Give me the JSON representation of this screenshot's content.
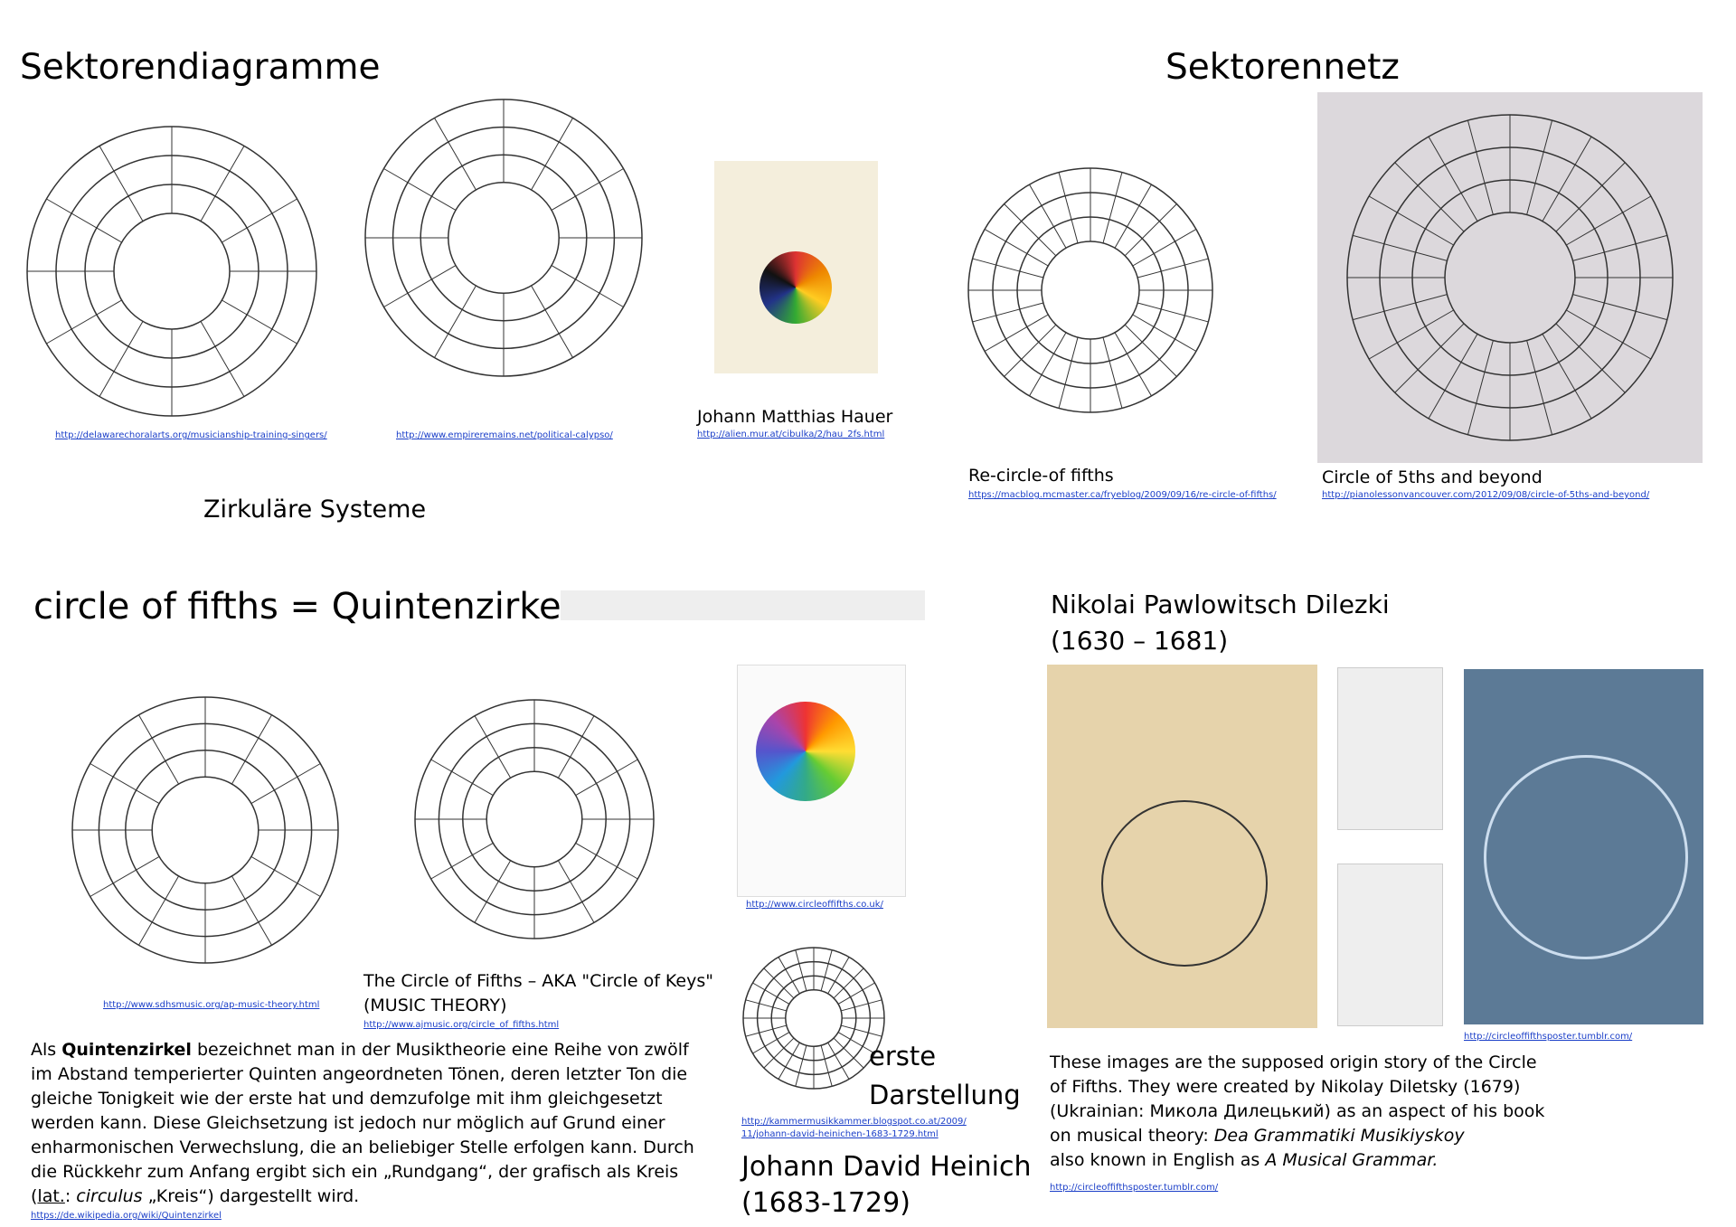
{
  "sections": {
    "sector_diagrams": {
      "title": "Sektorendiagramme",
      "subtitle": "Zirkuläre Systeme",
      "items": [
        {
          "url": "http://delawarechoralarts.org/musicianship-training-singers/"
        },
        {
          "url": "http://www.empireremains.net/political-calypso/"
        },
        {
          "caption": "Johann Matthias Hauer",
          "url": "http://alien.mur.at/cibulka/2/hau_2fs.html"
        }
      ]
    },
    "sector_net": {
      "title": "Sektorennetz",
      "items": [
        {
          "caption": "Re-circle-of fifths",
          "url": "https://macblog.mcmaster.ca/fryeblog/2009/09/16/re-circle-of-fifths/"
        },
        {
          "caption": "Circle of 5ths and beyond",
          "url": "http://pianolessonvancouver.com/2012/09/08/circle-of-5ths-and-beyond/"
        }
      ]
    },
    "circle_of_fifths": {
      "title": "circle of fifths = Quintenzirkel",
      "items": [
        {
          "url": "http://www.sdhsmusic.org/ap-music-theory.html"
        },
        {
          "caption_lines": [
            "The Circle of Fifths – AKA \"Circle of Keys\"",
            "(MUSIC THEORY)"
          ],
          "url": "http://www.ajmusic.org/circle_of_fifths.html"
        },
        {
          "url": "http://www.circleoffifths.co.uk/"
        }
      ],
      "paragraph": {
        "segments": [
          "Als ",
          "Quintenzirkel",
          " bezeichnet man in der Musiktheorie eine Reihe von zwölf im Abstand temperierter Quinten angeordneten Tönen, deren letzter Ton die gleiche Tonigkeit wie der erste hat und demzufolge mit ihm gleichgesetzt werden kann. Diese Gleichsetzung ist jedoch nur möglich auf Grund einer enharmonischen Verwechslung, die an beliebiger Stelle erfolgen kann. Durch die Rückkehr zum Anfang ergibt sich ein „Rundgang“, der grafisch als Kreis (",
          "lat.",
          ": ",
          "circulus",
          " „Kreis“) dargestellt wird."
        ],
        "url": "https://de.wikipedia.org/wiki/Quintenzirkel"
      }
    },
    "heinich": {
      "note_lines": [
        "erste",
        "Darstellung"
      ],
      "url_lines": [
        "http://kammermusikkammer.blogspot.co.at/2009/",
        "11/johann-david-heinichen-1683-1729.html"
      ],
      "name_lines": [
        "Johann David Heinich",
        "(1683-1729)"
      ]
    },
    "dilezki": {
      "title_lines": [
        "Nikolai Pawlowitsch Dilezki",
        "(1630 – 1681)"
      ],
      "poster_url": "http://circleoffifthsposter.tumblr.com/",
      "paragraph": {
        "segments": [
          "These images are the supposed origin story of the Circle of Fifths. They were created by Nikolay Diletsky (1679) (Ukrainian: Микола Дилецький) as an aspect of his book on musical theory: ",
          "Dea Grammatiki Musikiyskoy",
          "also known in English as ",
          "A Musical Grammar."
        ],
        "url": "http://circleoffifthsposter.tumblr.com/"
      }
    }
  }
}
